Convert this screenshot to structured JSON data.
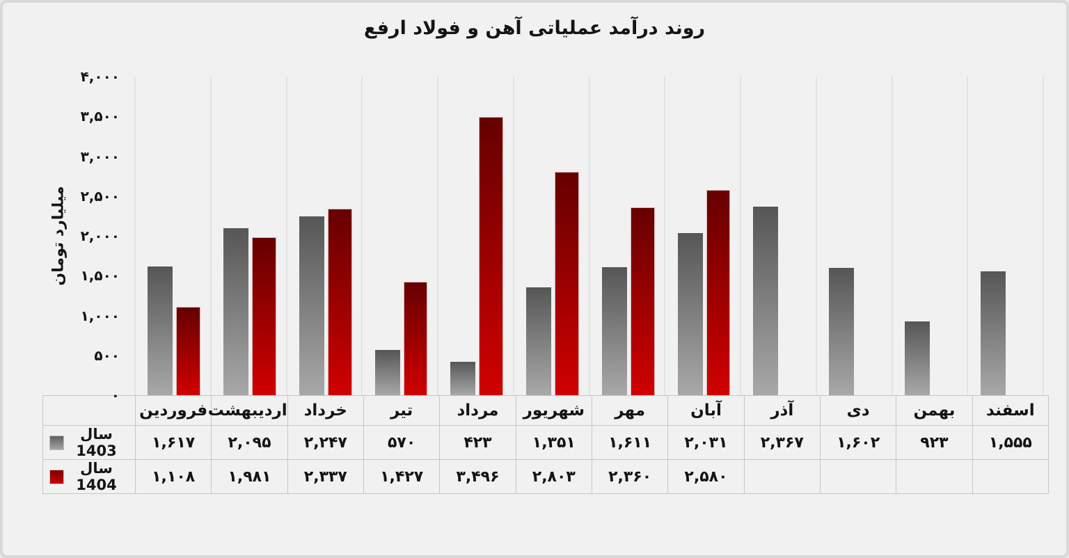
{
  "page": {
    "background": "#f1f1f2",
    "border_color": "#d9d9d9"
  },
  "chart_data": {
    "type": "bar",
    "title": "روند درآمد عملیاتی آهن و فولاد ارفع",
    "xlabel": "",
    "ylabel": "میلیارد تومان",
    "ylim": [
      0,
      4000
    ],
    "grid": "vertical-only",
    "legend_position": "table-left",
    "categories": [
      "فروردین",
      "اردیبهشت",
      "خرداد",
      "تیر",
      "مرداد",
      "شهریور",
      "مهر",
      "آبان",
      "آذر",
      "دی",
      "بهمن",
      "اسفند"
    ],
    "yticks": [
      {
        "value": 4000,
        "label": "۴,۰۰۰"
      },
      {
        "value": 3500,
        "label": "۳,۵۰۰"
      },
      {
        "value": 3000,
        "label": "۳,۰۰۰"
      },
      {
        "value": 2500,
        "label": "۲,۵۰۰"
      },
      {
        "value": 2000,
        "label": "۲,۰۰۰"
      },
      {
        "value": 1500,
        "label": "۱,۵۰۰"
      },
      {
        "value": 1000,
        "label": "۱,۰۰۰"
      },
      {
        "value": 500,
        "label": "۵۰۰"
      },
      {
        "value": 0,
        "label": "۰"
      }
    ],
    "series": [
      {
        "name": "سال 1403",
        "color_top": "#565656",
        "color_bottom": "#a8a8a8",
        "values": [
          1617,
          2095,
          2247,
          570,
          423,
          1351,
          1611,
          2031,
          2367,
          1602,
          923,
          1555
        ],
        "display": [
          "۱,۶۱۷",
          "۲,۰۹۵",
          "۲,۲۴۷",
          "۵۷۰",
          "۴۲۳",
          "۱,۳۵۱",
          "۱,۶۱۱",
          "۲,۰۳۱",
          "۲,۳۶۷",
          "۱,۶۰۲",
          "۹۲۳",
          "۱,۵۵۵"
        ]
      },
      {
        "name": "سال 1404",
        "color_top": "#660000",
        "color_bottom": "#d10000",
        "values": [
          1108,
          1981,
          2337,
          1427,
          3496,
          2803,
          2360,
          2580,
          null,
          null,
          null,
          null
        ],
        "display": [
          "۱,۱۰۸",
          "۱,۹۸۱",
          "۲,۳۳۷",
          "۱,۴۲۷",
          "۳,۴۹۶",
          "۲,۸۰۳",
          "۲,۳۶۰",
          "۲,۵۸۰",
          "",
          "",
          "",
          ""
        ]
      }
    ]
  }
}
